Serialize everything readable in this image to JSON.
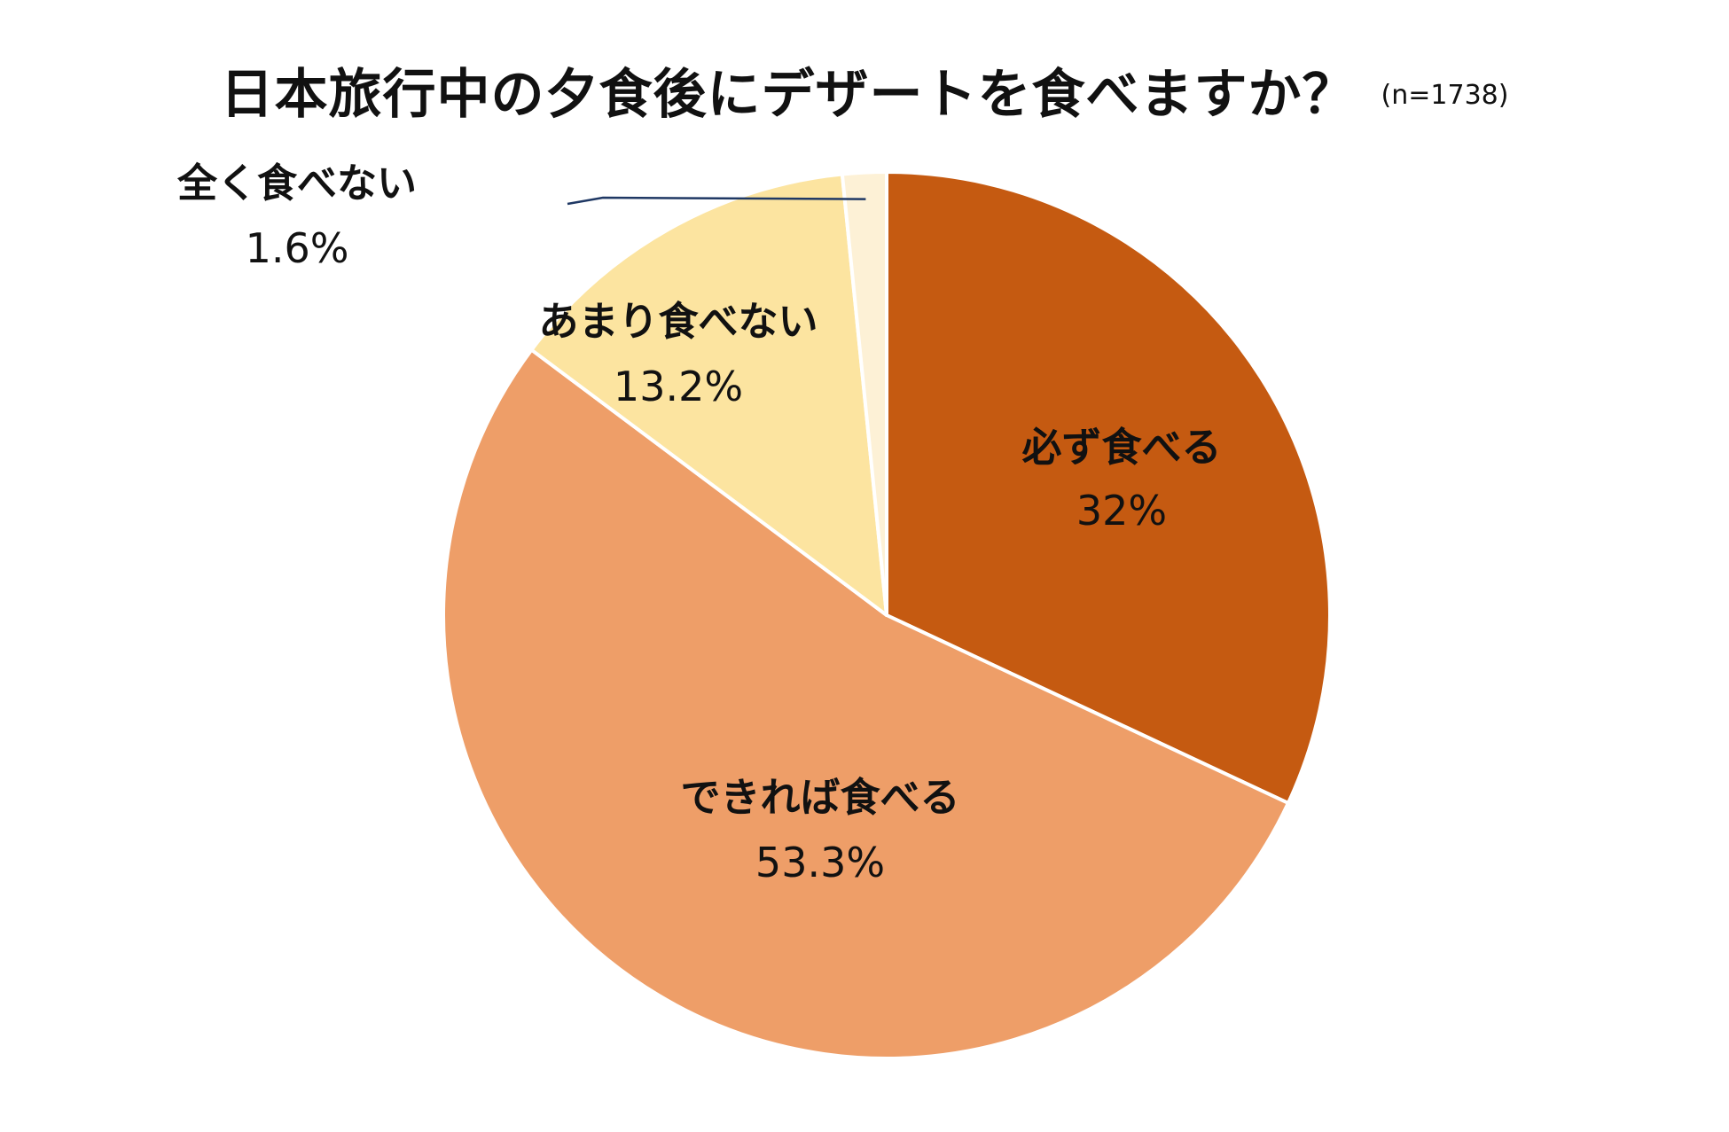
{
  "chart_data": {
    "type": "pie",
    "title": "日本旅行中の夕食後にデザートを食べますか？",
    "subtitle": "(n=1738)",
    "slices": [
      {
        "label": "必ず食べる",
        "value": 32,
        "value_text": "32%",
        "color": "#C55A11"
      },
      {
        "label": "できれば食べる",
        "value": 53.3,
        "value_text": "53.3%",
        "color": "#EE9E68"
      },
      {
        "label": "あまり食べない",
        "value": 13.2,
        "value_text": "13.2%",
        "color": "#FCE4A0"
      },
      {
        "label": "全く食べない",
        "value": 1.6,
        "value_text": "1.6%",
        "color": "#FDF1D6"
      }
    ],
    "start_angle": "12 o'clock",
    "direction": "clockwise",
    "slice_border_color": "#FFFFFF",
    "leader_line_color": "#1F3864",
    "legend": "none"
  }
}
